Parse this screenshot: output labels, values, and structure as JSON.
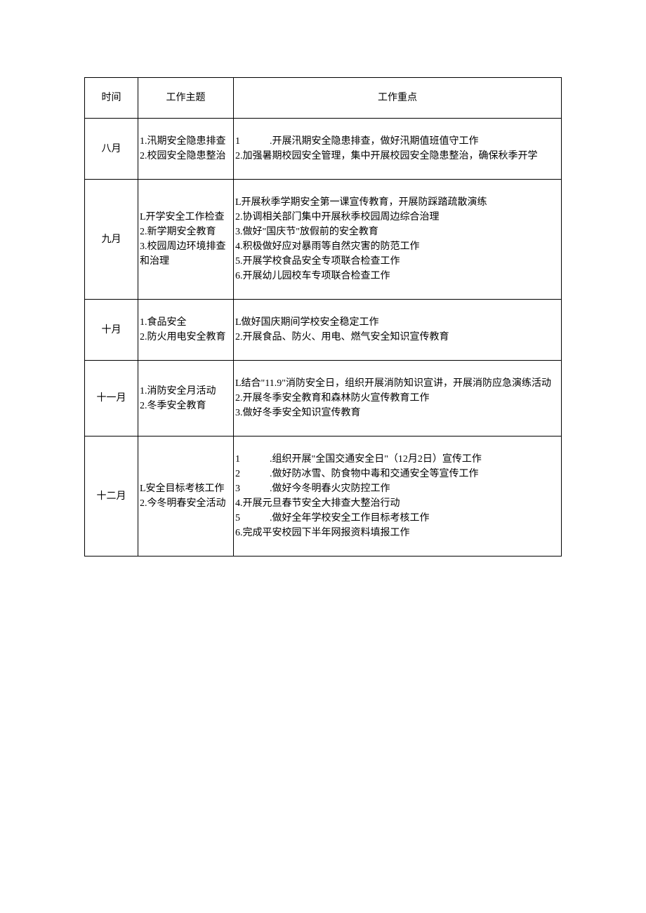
{
  "table": {
    "header": {
      "time": "时间",
      "theme": "工作主题",
      "focus": "工作重点"
    },
    "rows": [
      {
        "time": "八月",
        "theme": "1.汛期安全隐患排查\n2.校园安全隐患整治",
        "focus": "1　　　.开展汛期安全隐患排查，做好汛期值班值守工作\n2.加强暑期校园安全管理，集中开展校园安全隐患整治，确保秋季开学"
      },
      {
        "time": "九月",
        "theme": "L开学安全工作检查\n2.新学期安全教育\n3.校园周边环境排查和治理",
        "focus": "L开展秋季学期安全第一课宣传教育，开展防踩踏疏散演练\n2.协调相关部门集中开展秋季校园周边综合治理\n3.做好\"国庆节\"放假前的安全教育\n4.积极做好应对暴雨等自然灾害的防范工作\n5.开展学校食品安全专项联合检查工作\n6.开展幼儿园校车专项联合检查工作"
      },
      {
        "time": "十月",
        "theme": "1.食品安全\n2.防火用电安全教育",
        "focus": "L做好国庆期间学校安全稳定工作\n2.开展食品、防火、用电、燃气安全知识宣传教育"
      },
      {
        "time": "十一月",
        "theme": "1.消防安全月活动\n2.冬季安全教育",
        "focus": "L结合\"11.9\"消防安全日，组织开展消防知识宣讲，开展消防应急演练活动\n2.开展冬季安全教育和森林防火宣传教育工作\n3.做好冬季安全知识宣传教育"
      },
      {
        "time": "十二月",
        "theme": "L安全目标考核工作\n2.今冬明春安全活动",
        "focus": "1　　　.组织开展\"全国交通安全日\"（12月2日）宣传工作\n2　　　.做好防冰雪、防食物中毒和交通安全等宣传工作\n3　　　.做好今冬明春火灾防控工作\n4.开展元旦春节安全大排查大整治行动\n5　　　.做好全年学校安全工作目标考核工作\n6.完成平安校园下半年网报资料填报工作"
      }
    ]
  }
}
